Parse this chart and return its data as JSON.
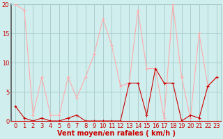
{
  "x": [
    0,
    1,
    2,
    3,
    4,
    5,
    6,
    7,
    8,
    9,
    10,
    11,
    12,
    13,
    14,
    15,
    16,
    17,
    18,
    19,
    20,
    21,
    22,
    23
  ],
  "y_rafales": [
    20,
    19,
    1,
    7.5,
    1,
    1,
    7.5,
    4,
    7.5,
    11.5,
    17.5,
    13,
    6,
    6.5,
    19,
    9,
    9,
    0.5,
    20,
    7.5,
    0.5,
    15,
    6,
    7.5
  ],
  "y_moyen": [
    2.5,
    0.5,
    0,
    0.5,
    0,
    0,
    0.5,
    1,
    0,
    0,
    0,
    0,
    0,
    6.5,
    6.5,
    1,
    9,
    6.5,
    6.5,
    0,
    1,
    0.5,
    6,
    7.5
  ],
  "bg_color": "#d0eeee",
  "grid_color": "#aacccc",
  "line_color_rafales": "#ffaaaa",
  "line_color_moyen": "#cc0000",
  "xlabel": "Vent moyen/en rafales ( km/h )",
  "ylim": [
    0,
    20
  ],
  "xlim": [
    -0.5,
    23.5
  ],
  "yticks": [
    0,
    5,
    10,
    15,
    20
  ],
  "xticks": [
    0,
    1,
    2,
    3,
    4,
    5,
    6,
    7,
    8,
    9,
    10,
    11,
    12,
    13,
    14,
    15,
    16,
    17,
    18,
    19,
    20,
    21,
    22,
    23
  ],
  "tick_fontsize": 6,
  "xlabel_fontsize": 7,
  "xlabel_color": "#cc0000",
  "tick_color": "#cc0000",
  "spine_color": "#cc0000"
}
